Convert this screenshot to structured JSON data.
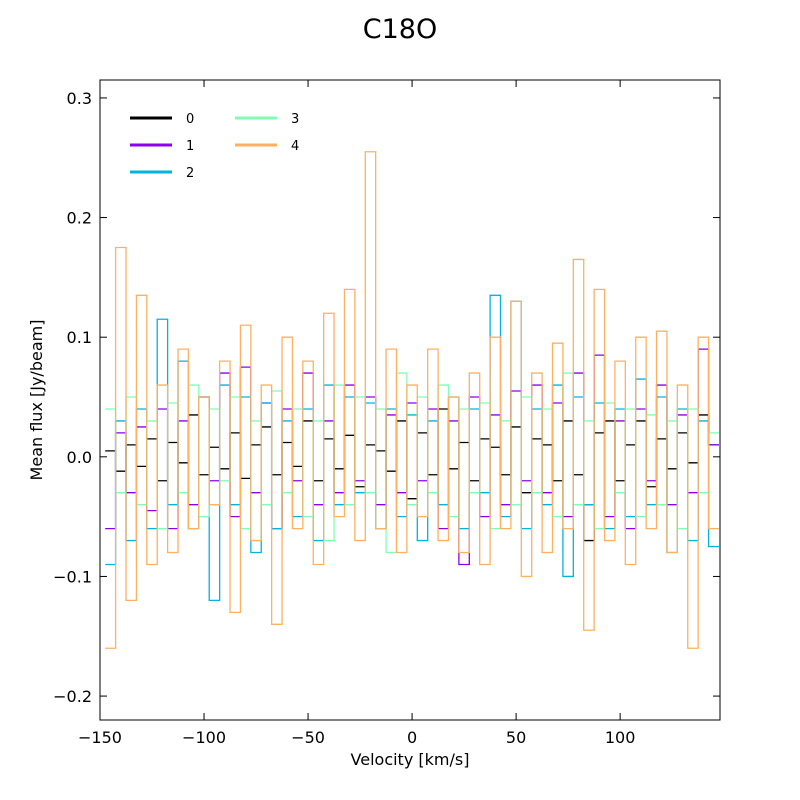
{
  "chart_data": {
    "type": "line",
    "title": "C18O",
    "xlabel": "Velocity  [km/s]",
    "ylabel": "Mean flux [Jy/beam]",
    "xlim": [
      -150,
      148
    ],
    "ylim": [
      -0.22,
      0.315
    ],
    "x_ticks": [
      -150,
      -100,
      -50,
      0,
      50,
      100
    ],
    "x_tick_labels": [
      "−150",
      "−100",
      "−50",
      "0",
      "50",
      "100"
    ],
    "y_ticks": [
      -0.2,
      -0.1,
      0.0,
      0.1,
      0.2,
      0.3
    ],
    "y_tick_labels": [
      "−0.2",
      "−0.1",
      "0.0",
      "0.1",
      "0.2",
      "0.3"
    ],
    "grid": false,
    "legend_position": "top-left",
    "legend_columns": 2,
    "step_style": "steps-mid",
    "series": [
      {
        "name": "0",
        "color": "#000000",
        "x": [
          -145,
          -140,
          -135,
          -130,
          -125,
          -120,
          -115,
          -110,
          -105,
          -100,
          -95,
          -90,
          -85,
          -80,
          -75,
          -70,
          -65,
          -60,
          -55,
          -50,
          -45,
          -40,
          -35,
          -30,
          -25,
          -20,
          -15,
          -10,
          -5,
          0,
          5,
          10,
          15,
          20,
          25,
          30,
          35,
          40,
          45,
          50,
          55,
          60,
          65,
          70,
          75,
          80,
          85,
          90,
          95,
          100,
          105,
          110,
          115,
          120,
          125,
          130,
          135,
          140,
          145
        ],
        "values": [
          0.005,
          -0.012,
          0.01,
          -0.008,
          0.015,
          -0.02,
          0.012,
          -0.005,
          0.035,
          -0.015,
          0.008,
          -0.01,
          0.02,
          -0.018,
          0.01,
          0.025,
          -0.015,
          0.012,
          -0.008,
          0.03,
          -0.02,
          0.015,
          -0.01,
          0.018,
          -0.025,
          0.01,
          0.005,
          -0.012,
          0.03,
          -0.035,
          0.02,
          -0.015,
          0.04,
          -0.01,
          0.012,
          -0.02,
          0.015,
          0.008,
          -0.015,
          0.025,
          -0.03,
          0.015,
          0.01,
          -0.02,
          0.03,
          -0.015,
          -0.07,
          0.02,
          0.03,
          -0.02,
          0.01,
          0.03,
          -0.025,
          0.015,
          -0.01,
          0.02,
          -0.005,
          0.035,
          0.01
        ]
      },
      {
        "name": "1",
        "color": "#8a00ee",
        "x": [
          -145,
          -140,
          -135,
          -130,
          -125,
          -120,
          -115,
          -110,
          -105,
          -100,
          -95,
          -90,
          -85,
          -80,
          -75,
          -70,
          -65,
          -60,
          -55,
          -50,
          -45,
          -40,
          -35,
          -30,
          -25,
          -20,
          -15,
          -10,
          -5,
          0,
          5,
          10,
          15,
          20,
          25,
          30,
          35,
          40,
          45,
          50,
          55,
          60,
          65,
          70,
          75,
          80,
          85,
          90,
          95,
          100,
          105,
          110,
          115,
          120,
          125,
          130,
          135,
          140,
          145
        ],
        "values": [
          -0.06,
          0.02,
          -0.03,
          0.025,
          -0.045,
          0.04,
          -0.06,
          0.03,
          -0.04,
          0.05,
          -0.02,
          0.07,
          -0.05,
          0.075,
          -0.03,
          0.045,
          -0.06,
          0.04,
          -0.02,
          0.07,
          -0.04,
          0.03,
          -0.03,
          0.06,
          -0.02,
          0.05,
          -0.04,
          0.035,
          -0.03,
          0.045,
          -0.02,
          0.04,
          -0.06,
          0.03,
          -0.09,
          0.05,
          -0.05,
          0.035,
          -0.04,
          0.055,
          -0.02,
          0.06,
          -0.03,
          0.045,
          -0.05,
          0.07,
          -0.04,
          0.085,
          -0.05,
          0.03,
          -0.06,
          0.04,
          -0.02,
          0.06,
          -0.04,
          0.035,
          -0.03,
          0.09,
          0.01
        ]
      },
      {
        "name": "2",
        "color": "#00b4e0",
        "x": [
          -145,
          -140,
          -135,
          -130,
          -125,
          -120,
          -115,
          -110,
          -105,
          -100,
          -95,
          -90,
          -85,
          -80,
          -75,
          -70,
          -65,
          -60,
          -55,
          -50,
          -45,
          -40,
          -35,
          -30,
          -25,
          -20,
          -15,
          -10,
          -5,
          0,
          5,
          10,
          15,
          20,
          25,
          30,
          35,
          40,
          45,
          50,
          55,
          60,
          65,
          70,
          75,
          80,
          85,
          90,
          95,
          100,
          105,
          110,
          115,
          120,
          125,
          130,
          135,
          140,
          145
        ],
        "values": [
          -0.09,
          0.03,
          -0.07,
          0.04,
          -0.06,
          0.115,
          -0.04,
          0.08,
          -0.06,
          0.05,
          -0.12,
          0.06,
          -0.04,
          0.05,
          -0.08,
          0.045,
          -0.06,
          0.03,
          -0.05,
          0.04,
          -0.07,
          0.06,
          -0.04,
          0.05,
          -0.03,
          0.045,
          -0.06,
          0.04,
          -0.05,
          0.035,
          -0.07,
          0.03,
          -0.04,
          0.05,
          -0.06,
          0.04,
          -0.03,
          0.135,
          -0.05,
          0.13,
          -0.06,
          0.04,
          -0.04,
          0.06,
          -0.1,
          0.05,
          -0.04,
          0.045,
          -0.06,
          0.04,
          -0.05,
          0.065,
          -0.04,
          0.05,
          -0.08,
          0.04,
          -0.07,
          0.03,
          -0.075
        ]
      },
      {
        "name": "3",
        "color": "#80ffb4",
        "x": [
          -145,
          -140,
          -135,
          -130,
          -125,
          -120,
          -115,
          -110,
          -105,
          -100,
          -95,
          -90,
          -85,
          -80,
          -75,
          -70,
          -65,
          -60,
          -55,
          -50,
          -45,
          -40,
          -35,
          -30,
          -25,
          -20,
          -15,
          -10,
          -5,
          0,
          5,
          10,
          15,
          20,
          25,
          30,
          35,
          40,
          45,
          50,
          55,
          60,
          65,
          70,
          75,
          80,
          85,
          90,
          95,
          100,
          105,
          110,
          115,
          120,
          125,
          130,
          135,
          140,
          145
        ],
        "values": [
          0.04,
          -0.03,
          0.05,
          -0.04,
          0.03,
          -0.06,
          0.045,
          -0.03,
          0.06,
          -0.05,
          0.04,
          -0.02,
          0.05,
          -0.06,
          0.03,
          -0.04,
          0.055,
          -0.03,
          0.04,
          -0.05,
          0.03,
          -0.07,
          0.06,
          -0.04,
          0.05,
          -0.03,
          0.04,
          -0.08,
          0.07,
          -0.04,
          0.05,
          -0.03,
          0.06,
          -0.05,
          0.04,
          -0.03,
          0.045,
          -0.06,
          0.03,
          -0.04,
          0.05,
          -0.03,
          0.04,
          -0.05,
          0.07,
          -0.04,
          0.03,
          -0.06,
          0.045,
          -0.03,
          0.04,
          -0.05,
          0.035,
          -0.04,
          0.03,
          -0.06,
          0.04,
          -0.03,
          0.02
        ]
      },
      {
        "name": "4",
        "color": "#ffb060",
        "x": [
          -145,
          -140,
          -135,
          -130,
          -125,
          -120,
          -115,
          -110,
          -105,
          -100,
          -95,
          -90,
          -85,
          -80,
          -75,
          -70,
          -65,
          -60,
          -55,
          -50,
          -45,
          -40,
          -35,
          -30,
          -25,
          -20,
          -15,
          -10,
          -5,
          0,
          5,
          10,
          15,
          20,
          25,
          30,
          35,
          40,
          45,
          50,
          55,
          60,
          65,
          70,
          75,
          80,
          85,
          90,
          95,
          100,
          105,
          110,
          115,
          120,
          125,
          130,
          135,
          140,
          145
        ],
        "values": [
          -0.16,
          0.175,
          -0.12,
          0.135,
          -0.09,
          0.06,
          -0.08,
          0.09,
          -0.06,
          0.05,
          -0.04,
          0.08,
          -0.13,
          0.11,
          -0.07,
          0.06,
          -0.14,
          0.1,
          -0.06,
          0.08,
          -0.09,
          0.12,
          -0.05,
          0.14,
          -0.07,
          0.255,
          -0.06,
          0.09,
          -0.08,
          0.06,
          -0.05,
          0.09,
          -0.07,
          0.05,
          -0.08,
          0.07,
          -0.09,
          0.1,
          -0.06,
          0.13,
          -0.1,
          0.07,
          -0.08,
          0.095,
          -0.06,
          0.165,
          -0.145,
          0.14,
          -0.07,
          0.08,
          -0.09,
          0.1,
          -0.06,
          0.105,
          -0.08,
          0.06,
          -0.16,
          0.1,
          -0.06
        ]
      }
    ]
  }
}
